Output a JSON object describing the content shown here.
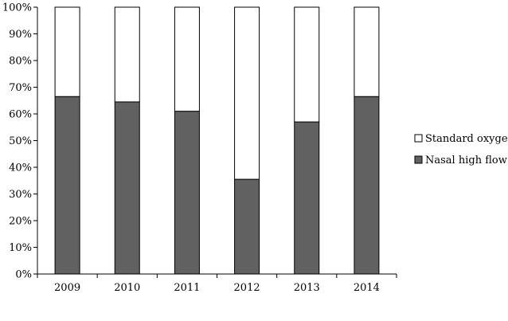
{
  "chart_data": {
    "type": "bar",
    "stacked": true,
    "percent_stacked": true,
    "title": "",
    "xlabel": "",
    "ylabel": "",
    "ylim": [
      0,
      100
    ],
    "yticks": [
      "0%",
      "10%",
      "20%",
      "30%",
      "40%",
      "50%",
      "60%",
      "70%",
      "80%",
      "90%",
      "100%"
    ],
    "categories": [
      "2009",
      "2010",
      "2011",
      "2012",
      "2013",
      "2014"
    ],
    "series": [
      {
        "name": "Nasal high flow",
        "values": [
          66.5,
          64.5,
          61,
          35.5,
          57,
          66.5
        ],
        "color": "#616161"
      },
      {
        "name": "Standard oxygen",
        "values": [
          33.5,
          35.5,
          39,
          64.5,
          43,
          33.5
        ],
        "color": "#ffffff"
      }
    ],
    "grid": false,
    "legend_position": "right"
  }
}
